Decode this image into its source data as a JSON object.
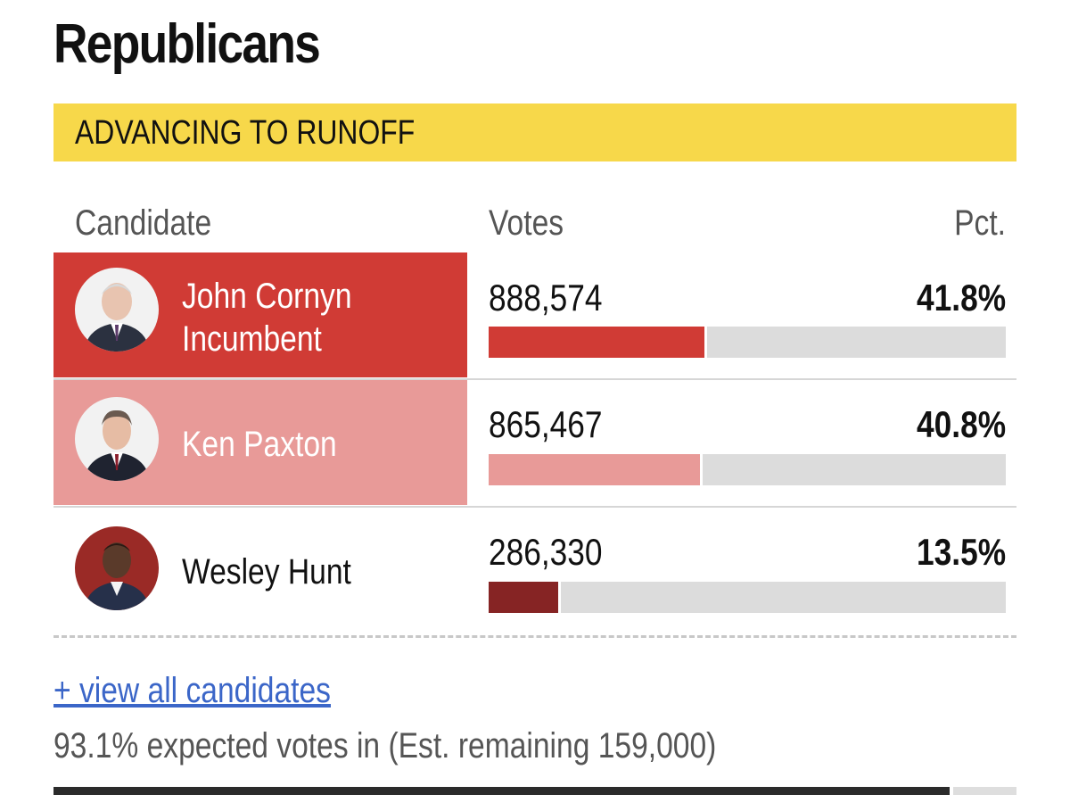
{
  "section_title": "Republicans",
  "banner": "ADVANCING TO RUNOFF",
  "headers": {
    "candidate": "Candidate",
    "votes": "Votes",
    "pct": "Pct."
  },
  "candidates": [
    {
      "name": "John Cornyn",
      "status": "Incumbent",
      "votes": "888,574",
      "pct": "41.8%",
      "share": 0.418,
      "bar_color": "#d03b35",
      "panel_color": "#d03b35"
    },
    {
      "name": "Ken Paxton",
      "status": "",
      "votes": "865,467",
      "pct": "40.8%",
      "share": 0.408,
      "bar_color": "#e89a98",
      "panel_color": "#e89a98"
    },
    {
      "name": "Wesley Hunt",
      "status": "",
      "votes": "286,330",
      "pct": "13.5%",
      "share": 0.135,
      "bar_color": "#862424",
      "panel_color": "#ffffff"
    }
  ],
  "view_all_link": "+ view all candidates",
  "expected_text": "93.1% expected votes in (Est. remaining 159,000)",
  "expected_share": 0.931,
  "colors": {
    "banner": "#f7d84a",
    "link": "#3b66c8",
    "progress": "#2b2b2b"
  },
  "icons": [
    "avatar-john-cornyn",
    "avatar-ken-paxton",
    "avatar-wesley-hunt"
  ]
}
